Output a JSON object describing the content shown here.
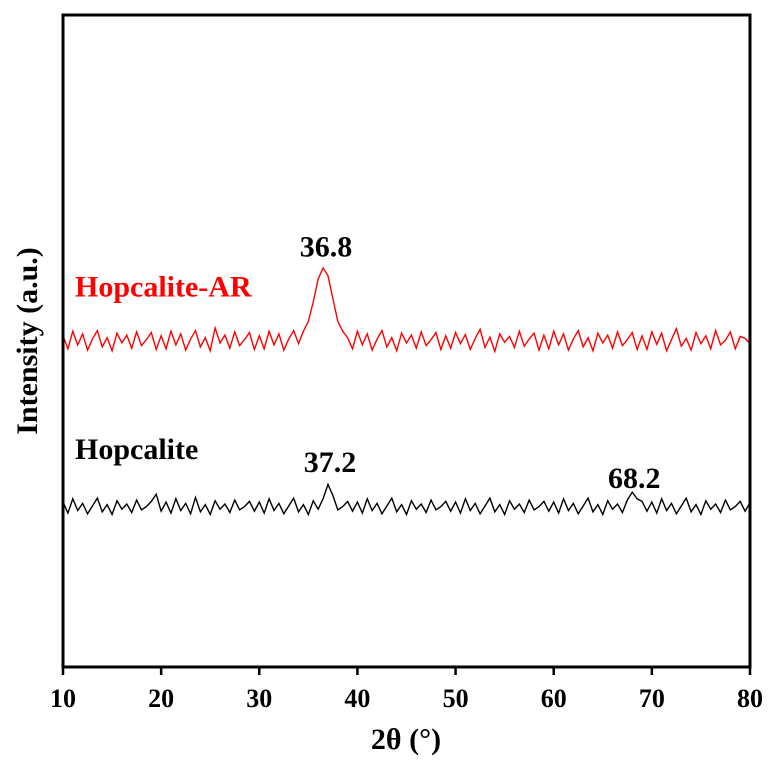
{
  "chart_data": {
    "type": "line",
    "xlabel": "2θ (°)",
    "ylabel": "Intensity (a.u.)",
    "xlim": [
      10,
      80
    ],
    "ylim": [
      0,
      100
    ],
    "xticks": [
      10,
      20,
      30,
      40,
      50,
      60,
      70,
      80
    ],
    "x": [
      10,
      10.5,
      11,
      11.5,
      12,
      12.5,
      13,
      13.5,
      14,
      14.5,
      15,
      15.5,
      16,
      16.5,
      17,
      17.5,
      18,
      18.5,
      19,
      19.5,
      20,
      20.5,
      21,
      21.5,
      22,
      22.5,
      23,
      23.5,
      24,
      24.5,
      25,
      25.5,
      26,
      26.5,
      27,
      27.5,
      28,
      28.5,
      29,
      29.5,
      30,
      30.5,
      31,
      31.5,
      32,
      32.5,
      33,
      33.5,
      34,
      34.5,
      35,
      35.5,
      36,
      36.5,
      37,
      37.5,
      38,
      38.5,
      39,
      39.5,
      40,
      40.5,
      41,
      41.5,
      42,
      42.5,
      43,
      43.5,
      44,
      44.5,
      45,
      45.5,
      46,
      46.5,
      47,
      47.5,
      48,
      48.5,
      49,
      49.5,
      50,
      50.5,
      51,
      51.5,
      52,
      52.5,
      53,
      53.5,
      54,
      54.5,
      55,
      55.5,
      56,
      56.5,
      57,
      57.5,
      58,
      58.5,
      59,
      59.5,
      60,
      60.5,
      61,
      61.5,
      62,
      62.5,
      63,
      63.5,
      64,
      64.5,
      65,
      65.5,
      66,
      66.5,
      67,
      67.5,
      68,
      68.5,
      69,
      69.5,
      70,
      70.5,
      71,
      71.5,
      72,
      72.5,
      73,
      73.5,
      74,
      74.5,
      75,
      75.5,
      76,
      76.5,
      77,
      77.5,
      78,
      78.5,
      79,
      79.5,
      80
    ],
    "series": [
      {
        "name": "Hopcalite-AR",
        "color": "#ff0000",
        "values": [
          50.8,
          48.8,
          51.5,
          49.4,
          51.1,
          48.6,
          50.3,
          51.6,
          49.1,
          50.5,
          48.5,
          51.2,
          49.7,
          50.9,
          48.9,
          51.4,
          49.3,
          50.2,
          51.3,
          48.7,
          50.8,
          48.8,
          51.5,
          49.4,
          51.1,
          48.6,
          50.3,
          51.6,
          49.1,
          50.5,
          48.5,
          52.0,
          49.7,
          50.9,
          48.9,
          51.4,
          49.3,
          50.2,
          51.3,
          48.7,
          50.8,
          48.8,
          51.5,
          49.4,
          51.1,
          48.6,
          50.3,
          51.6,
          49.6,
          51.5,
          53,
          56,
          59.5,
          61.2,
          60,
          56.5,
          53,
          51.5,
          50.5,
          48.8,
          51.5,
          49.4,
          51.1,
          48.6,
          50.3,
          51.6,
          49.1,
          50.5,
          48.5,
          51.2,
          49.7,
          50.9,
          48.9,
          51.4,
          49.3,
          50.2,
          51.3,
          48.7,
          50.8,
          48.9,
          51.3,
          49.6,
          51.0,
          48.7,
          50.4,
          51.8,
          49.0,
          50.6,
          48.4,
          51.1,
          49.8,
          50.7,
          49.0,
          51.5,
          49.2,
          50.3,
          51.2,
          48.6,
          50.9,
          48.8,
          51.5,
          49.4,
          51.1,
          48.6,
          50.3,
          51.6,
          49.1,
          50.5,
          48.5,
          51.2,
          49.7,
          50.9,
          48.9,
          51.4,
          49.3,
          50.2,
          51.3,
          48.7,
          50.8,
          48.7,
          51.4,
          49.5,
          51.2,
          48.5,
          50.2,
          51.9,
          49.2,
          50.4,
          48.6,
          51.3,
          49.6,
          50.8,
          48.8,
          51.6,
          49.4,
          50.1,
          51.4,
          48.8,
          50.7,
          50.4,
          49.6
        ]
      },
      {
        "name": "Hopcalite",
        "color": "#000000",
        "values": [
          25.3,
          23.6,
          25.8,
          24.0,
          25.1,
          23.5,
          24.7,
          25.9,
          23.8,
          24.9,
          23.4,
          25.5,
          24.2,
          25.0,
          23.7,
          25.6,
          24.1,
          24.6,
          25.4,
          26.5,
          23.9,
          25.3,
          23.6,
          25.8,
          24.0,
          25.1,
          23.5,
          26.0,
          23.8,
          24.9,
          23.4,
          25.5,
          24.2,
          25.0,
          23.7,
          25.6,
          24.1,
          24.6,
          25.4,
          23.9,
          25.3,
          23.6,
          25.8,
          24.0,
          25.1,
          23.5,
          24.7,
          25.9,
          23.8,
          24.9,
          23.4,
          25.5,
          24.2,
          25.8,
          28.0,
          26.3,
          24.1,
          24.6,
          25.4,
          23.9,
          25.3,
          23.6,
          25.8,
          24.0,
          25.1,
          23.5,
          24.7,
          25.9,
          23.8,
          24.9,
          23.4,
          25.5,
          24.2,
          25.0,
          23.7,
          25.6,
          24.1,
          24.6,
          25.4,
          23.9,
          25.3,
          23.6,
          25.8,
          24.0,
          25.1,
          23.5,
          24.7,
          25.9,
          23.8,
          24.9,
          23.4,
          25.5,
          24.2,
          25.0,
          23.7,
          25.6,
          24.1,
          24.6,
          25.4,
          23.9,
          25.3,
          23.6,
          25.8,
          24.0,
          25.1,
          23.5,
          24.7,
          25.9,
          23.8,
          24.9,
          23.4,
          25.5,
          24.2,
          25.0,
          23.7,
          25.6,
          26.8,
          25.8,
          25.4,
          23.9,
          25.3,
          23.6,
          25.8,
          24.0,
          25.1,
          23.5,
          24.7,
          25.9,
          23.8,
          24.9,
          23.4,
          25.5,
          24.2,
          25.0,
          23.7,
          25.6,
          24.1,
          24.6,
          25.4,
          23.9,
          25.2
        ]
      }
    ],
    "annotations": [
      {
        "label": "36.8",
        "x": 36.8,
        "y": 64
      },
      {
        "label": "37.2",
        "x": 37.2,
        "y": 31
      },
      {
        "label": "68.2",
        "x": 68.2,
        "y": 28.5
      }
    ]
  }
}
